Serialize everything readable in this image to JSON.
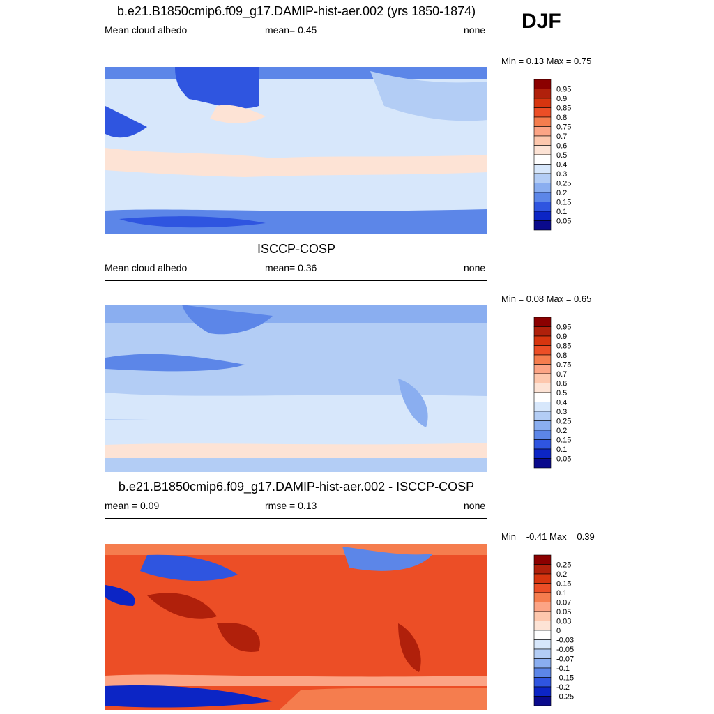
{
  "season": "DJF",
  "panels": [
    {
      "title": "b.e21.B1850cmip6.f09_g17.DAMIP-hist-aer.002 (yrs 1850-1874)",
      "left_label": "Mean cloud albedo",
      "center_label": "mean=   0.45",
      "right_label": "none",
      "minmax": "Min =   0.13 Max =   0.75"
    },
    {
      "title": "ISCCP-COSP",
      "left_label": "Mean cloud albedo",
      "center_label": "mean=   0.36",
      "right_label": "none",
      "minmax": "Min =   0.08 Max =   0.65"
    },
    {
      "title": "b.e21.B1850cmip6.f09_g17.DAMIP-hist-aer.002 - ISCCP-COSP",
      "left_label": "mean =   0.09",
      "center_label": "rmse =   0.13",
      "right_label": "none",
      "minmax": "Min =  -0.41 Max =   0.39"
    }
  ],
  "chart_data": [
    {
      "type": "heatmap",
      "title": "b.e21.B1850cmip6.f09_g17.DAMIP-hist-aer.002 (yrs 1850-1874)",
      "variable": "Mean cloud albedo",
      "units": "none",
      "mean": 0.45,
      "min": 0.13,
      "max": 0.75,
      "levels": [
        "0.95",
        "0.9",
        "0.85",
        "0.8",
        "0.75",
        "0.7",
        "0.6",
        "0.5",
        "0.4",
        "0.3",
        "0.25",
        "0.2",
        "0.15",
        "0.1",
        "0.05"
      ],
      "colors": [
        "#8b0000",
        "#b0200b",
        "#d7350f",
        "#ec4e26",
        "#f57d4e",
        "#fca485",
        "#fdc7ad",
        "#fde3d5",
        "#ffffff",
        "#d7e7fb",
        "#b3cdf5",
        "#8aaef0",
        "#5c86e8",
        "#2f55e0",
        "#0c25c5",
        "#0a0a8c"
      ]
    },
    {
      "type": "heatmap",
      "title": "ISCCP-COSP",
      "variable": "Mean cloud albedo",
      "units": "none",
      "mean": 0.36,
      "min": 0.08,
      "max": 0.65,
      "levels": [
        "0.95",
        "0.9",
        "0.85",
        "0.8",
        "0.75",
        "0.7",
        "0.6",
        "0.5",
        "0.4",
        "0.3",
        "0.25",
        "0.2",
        "0.15",
        "0.1",
        "0.05"
      ],
      "colors": [
        "#8b0000",
        "#b0200b",
        "#d7350f",
        "#ec4e26",
        "#f57d4e",
        "#fca485",
        "#fdc7ad",
        "#fde3d5",
        "#ffffff",
        "#d7e7fb",
        "#b3cdf5",
        "#8aaef0",
        "#5c86e8",
        "#2f55e0",
        "#0c25c5",
        "#0a0a8c"
      ]
    },
    {
      "type": "heatmap",
      "title": "b.e21.B1850cmip6.f09_g17.DAMIP-hist-aer.002 - ISCCP-COSP",
      "mean": 0.09,
      "rmse": 0.13,
      "units": "none",
      "min": -0.41,
      "max": 0.39,
      "levels": [
        "0.25",
        "0.2",
        "0.15",
        "0.1",
        "0.07",
        "0.05",
        "0.03",
        "0",
        "-0.03",
        "-0.05",
        "-0.07",
        "-0.1",
        "-0.15",
        "-0.2",
        "-0.25"
      ],
      "colors": [
        "#8b0000",
        "#b0200b",
        "#d7350f",
        "#ec4e26",
        "#f57d4e",
        "#fca485",
        "#fdc7ad",
        "#fde3d5",
        "#ffffff",
        "#d7e7fb",
        "#b3cdf5",
        "#8aaef0",
        "#5c86e8",
        "#2f55e0",
        "#0c25c5",
        "#0a0a8c"
      ]
    }
  ]
}
